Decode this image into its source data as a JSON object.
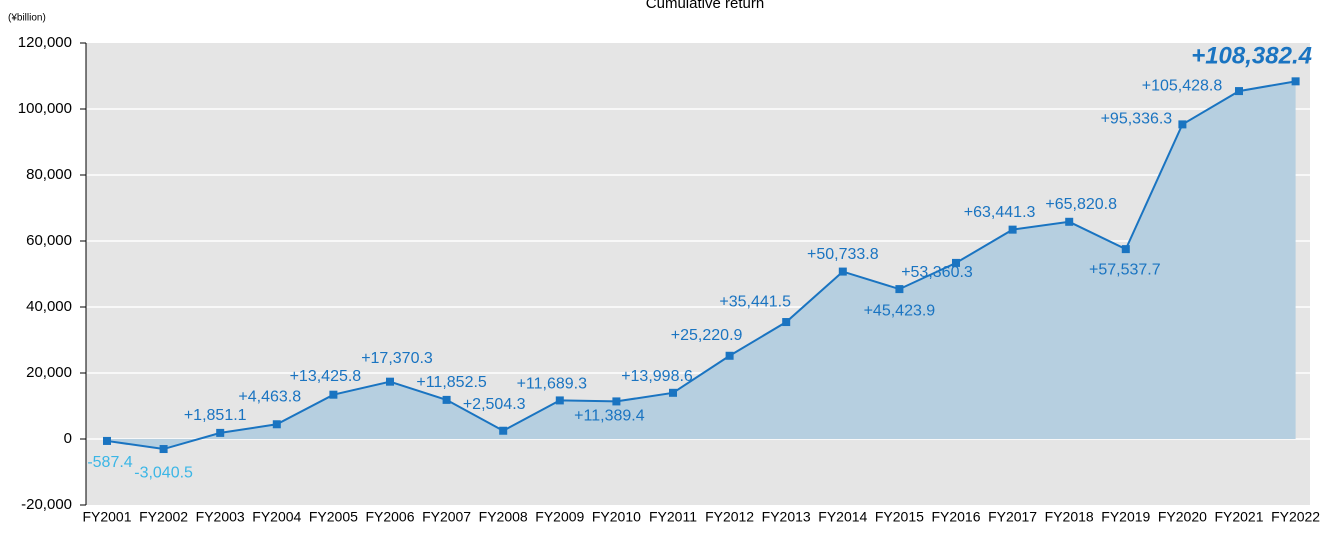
{
  "chart_data": {
    "type": "line",
    "title": "Cumulative return",
    "y_label": "(¥billion)",
    "categories": [
      "FY2001",
      "FY2002",
      "FY2003",
      "FY2004",
      "FY2005",
      "FY2006",
      "FY2007",
      "FY2008",
      "FY2009",
      "FY2010",
      "FY2011",
      "FY2012",
      "FY2013",
      "FY2014",
      "FY2015",
      "FY2016",
      "FY2017",
      "FY2018",
      "FY2019",
      "FY2020",
      "FY2021",
      "FY2022"
    ],
    "series": [
      {
        "name": "Cumulative return",
        "color": "#1a74c1",
        "fill": "#b6cfe0",
        "values": [
          -587.4,
          -3040.5,
          1851.1,
          4463.8,
          13425.8,
          17370.3,
          11852.5,
          2504.3,
          11689.3,
          11389.4,
          13998.6,
          25220.9,
          35441.5,
          50733.8,
          45423.9,
          53360.3,
          63441.3,
          65820.8,
          57537.7,
          95336.3,
          105428.8,
          108382.4
        ],
        "value_labels": [
          "-587.4",
          "-3,040.5",
          "+1,851.1",
          "+4,463.8",
          "+13,425.8",
          "+17,370.3",
          "+11,852.5",
          "+2,504.3",
          "+11,689.3",
          "+11,389.4",
          "+13,998.6",
          "+25,220.9",
          "+35,441.5",
          "+50,733.8",
          "+45,423.9",
          "+53,360.3",
          "+63,441.3",
          "+65,820.8",
          "+57,537.7",
          "+95,336.3",
          "+105,428.8",
          "+108,382.4"
        ]
      }
    ],
    "ylim": [
      -20000,
      120000
    ],
    "yticks": [
      {
        "value": -20000,
        "label": "-20,000"
      },
      0,
      {
        "value": 20000,
        "label": "20,000"
      },
      {
        "value": 40000,
        "label": "40,000"
      },
      {
        "value": 60000,
        "label": "60,000"
      },
      {
        "value": 80000,
        "label": "80,000"
      },
      {
        "value": 100000,
        "label": "100,000"
      },
      {
        "value": 120000,
        "label": "120,000"
      }
    ],
    "grid": true
  }
}
